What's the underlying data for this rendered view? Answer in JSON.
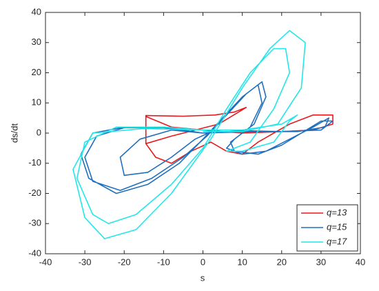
{
  "chart_data": {
    "type": "line",
    "xlabel": "s",
    "ylabel": "ds/dt",
    "xlim": [
      -40,
      40
    ],
    "xticks": [
      -40,
      -30,
      -20,
      -10,
      0,
      10,
      20,
      30,
      40
    ],
    "ylim": [
      -40,
      40
    ],
    "yticks": [
      -40,
      -30,
      -20,
      -10,
      0,
      10,
      20,
      30,
      40
    ],
    "legend": "lower right",
    "series": [
      {
        "name": "q=13",
        "color": "#e8191e",
        "x": [
          -14.5,
          -5,
          3,
          8,
          11,
          4,
          -2,
          -8,
          -14.5,
          -14.5,
          -14.5,
          -12,
          -8,
          -3,
          2,
          6,
          10,
          14,
          18,
          22,
          28,
          33,
          33,
          28,
          20,
          10,
          0,
          -8,
          -14.5
        ],
        "values": [
          5.8,
          5.6,
          6,
          7,
          8.5,
          3,
          1,
          -1,
          -3.5,
          5.8,
          -3.5,
          -8,
          -10,
          -6,
          -3,
          -6,
          -7,
          -3,
          0,
          3,
          6,
          6,
          3,
          1,
          0.5,
          0,
          1,
          2,
          5.5
        ]
      },
      {
        "name": "q=15",
        "color": "#1f6fbf",
        "x": [
          0,
          -10,
          -20,
          -28,
          -31,
          -29,
          -22,
          -14,
          -6,
          0,
          5,
          10,
          14,
          15,
          12,
          7,
          8,
          14,
          20,
          25,
          30,
          33,
          30,
          20,
          10,
          0,
          -10,
          -20,
          -27,
          -30,
          -28,
          -21,
          -13,
          -5,
          1,
          6,
          11,
          15,
          16,
          13,
          8,
          6,
          10,
          16,
          22,
          28,
          32,
          31,
          24,
          14,
          5,
          0,
          -8,
          -16,
          -21,
          -20,
          -14,
          -8,
          -2,
          3
        ],
        "values": [
          0,
          2,
          2,
          0,
          -7,
          -15,
          -20,
          -17,
          -10,
          -2,
          5,
          12,
          16,
          10,
          2,
          -3,
          -6,
          -7,
          -4,
          0,
          4,
          4,
          1,
          0.5,
          0.8,
          0,
          1.8,
          1.8,
          -1,
          -8,
          -16,
          -19,
          -15,
          -8,
          -1,
          6,
          13,
          17,
          12,
          3,
          -2,
          -5,
          -7,
          -6,
          -2,
          2,
          5,
          2,
          0.5,
          0.5,
          0.2,
          0,
          1,
          -2,
          -8,
          -14,
          -13,
          -8,
          -2,
          1
        ]
      },
      {
        "name": "q=17",
        "color": "#22e6ea",
        "x": [
          0,
          -10,
          -22,
          -30,
          -32,
          -28,
          -24,
          -17,
          -8,
          0,
          6,
          12,
          18,
          21,
          22,
          18,
          12,
          6,
          10,
          18,
          22,
          24,
          20,
          10,
          0,
          -15,
          -28,
          -33,
          -30,
          -25,
          -17,
          -8,
          2,
          10,
          17,
          22,
          26,
          25,
          19,
          10,
          0
        ],
        "values": [
          1,
          2,
          2,
          -3,
          -15,
          -27,
          -30,
          -27,
          -17,
          -5,
          8,
          20,
          28,
          28,
          20,
          8,
          -3,
          -6,
          -6,
          -3,
          4,
          6,
          3,
          1,
          1,
          1.5,
          0,
          -12,
          -28,
          -35,
          -32,
          -20,
          -2,
          15,
          28,
          34,
          30,
          15,
          3,
          0.5,
          0.5
        ]
      }
    ]
  }
}
